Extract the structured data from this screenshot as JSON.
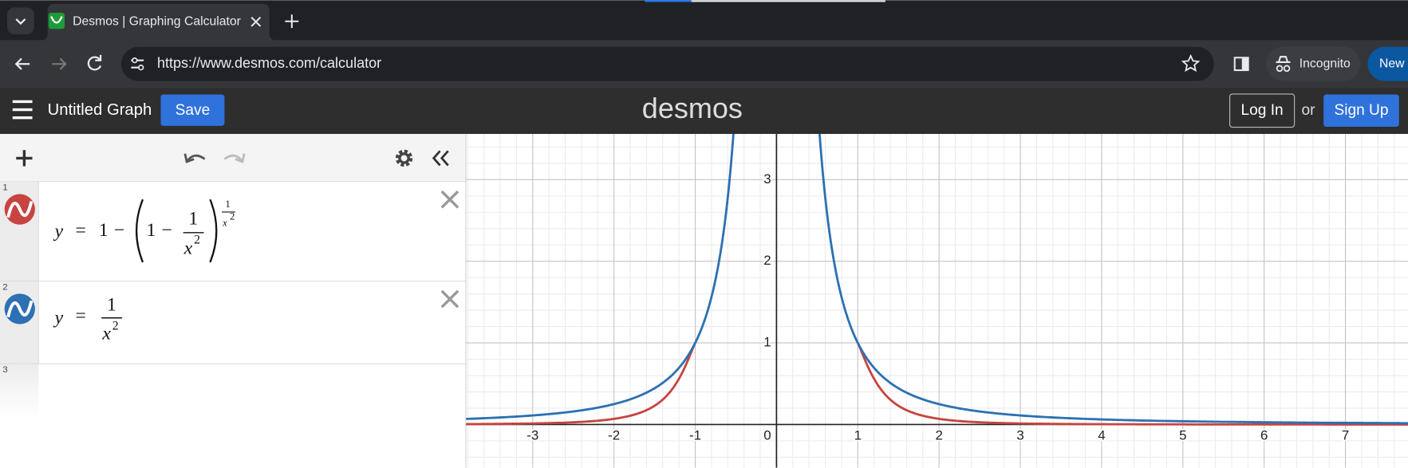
{
  "browser": {
    "tab_title": "Desmos | Graphing Calculator",
    "url": "https://www.desmos.com/calculator",
    "incognito": "Incognito",
    "update_button": "New C"
  },
  "header": {
    "title": "Untitled Graph",
    "save": "Save",
    "logo": "desmos",
    "log_in": "Log In",
    "or": "or",
    "sign_up": "Sign Up"
  },
  "expressions": [
    {
      "index": "1",
      "tokens": [
        "y",
        "=",
        "1",
        "−",
        "1",
        "−",
        "1",
        "x",
        "2",
        "1",
        "x",
        "2"
      ]
    },
    {
      "index": "2",
      "tokens": [
        "y",
        "=",
        "1",
        "x",
        "2"
      ]
    },
    {
      "index": "3"
    }
  ],
  "graph": {
    "xlim": [
      -3.82,
      7.77
    ],
    "ylim": [
      -0.53,
      3.56
    ],
    "xticks": [
      -3,
      -2,
      -1,
      1,
      2,
      3,
      4,
      5,
      6,
      7
    ],
    "yticks": [
      1,
      2,
      3
    ],
    "origin": 0
  }
}
